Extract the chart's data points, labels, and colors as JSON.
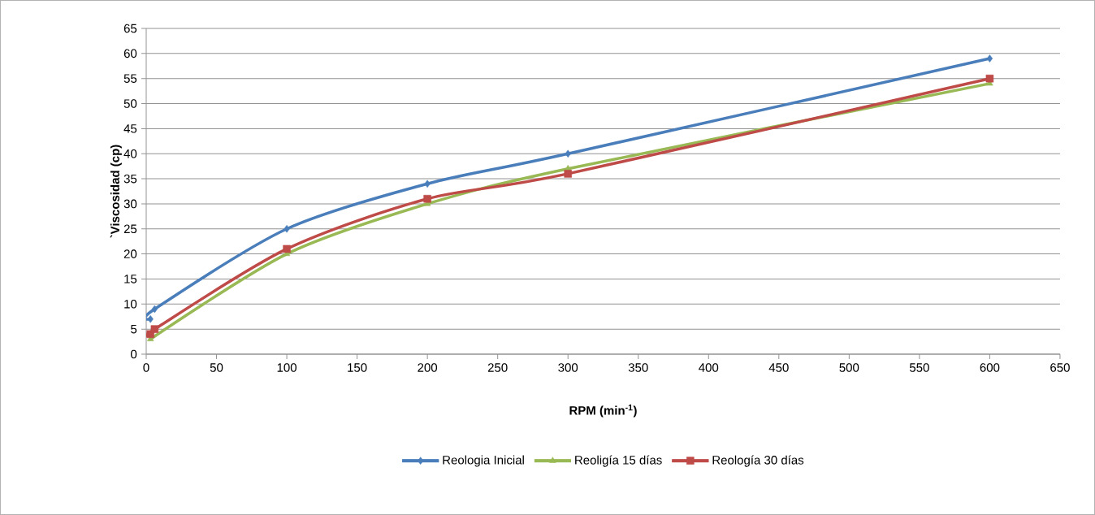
{
  "chart_data": {
    "type": "line",
    "xlabel": "RPM (min$^{-1}$)",
    "ylabel": "`Viscosidad (cp)",
    "x": [
      3,
      6,
      100,
      200,
      300,
      600
    ],
    "series": [
      {
        "name": "Reologia Inicial",
        "color": "#4a7ebb",
        "marker": "diamond",
        "values": [
          7,
          9,
          25,
          34,
          40,
          59
        ]
      },
      {
        "name": "Reoligía 15 días",
        "color": "#98b954",
        "marker": "triangle",
        "values": [
          3,
          null,
          20,
          30,
          37,
          54
        ]
      },
      {
        "name": "Reología 30 días",
        "color": "#be4b48",
        "marker": "square",
        "values": [
          4,
          5,
          21,
          31,
          36,
          55
        ]
      }
    ],
    "xlim": [
      0,
      650
    ],
    "xticks": [
      0,
      50,
      100,
      150,
      200,
      250,
      300,
      350,
      400,
      450,
      500,
      550,
      600,
      650
    ],
    "ylim": [
      0,
      65
    ],
    "yticks": [
      0,
      5,
      10,
      15,
      20,
      25,
      30,
      35,
      40,
      45,
      50,
      55,
      60,
      65
    ],
    "grid": "y",
    "legend": "bottom",
    "line_style": "solid"
  }
}
